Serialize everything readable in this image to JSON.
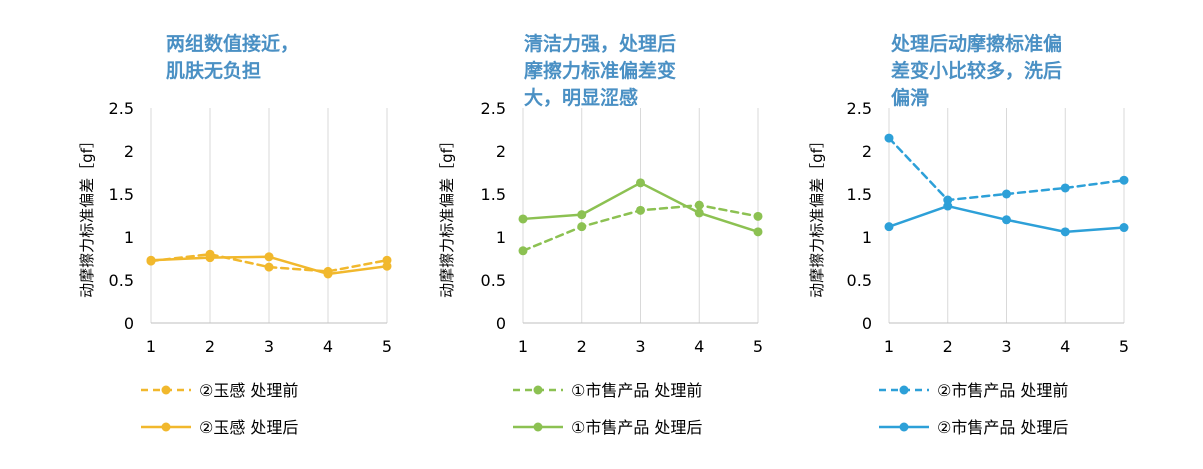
{
  "chart_data": [
    {
      "type": "line",
      "title_lines": [
        "两组数值接近，",
        "肌肤无负担"
      ],
      "ylabel": "动摩擦力标准偏差［gf］",
      "xlabel": "",
      "x": [
        1,
        2,
        3,
        4,
        5
      ],
      "ylim": [
        0,
        2.5
      ],
      "yticks": [
        "0",
        "0.5",
        "1",
        "1.5",
        "2",
        "2.5"
      ],
      "grid": "vertical",
      "legend_position": "bottom",
      "color": "#F1B82D",
      "title_color": "#4A90C4",
      "series": [
        {
          "name": "②玉感 处理前",
          "style": "dashed",
          "values": [
            0.72,
            0.8,
            0.65,
            0.6,
            0.73
          ]
        },
        {
          "name": "②玉感 处理后",
          "style": "solid",
          "values": [
            0.73,
            0.76,
            0.77,
            0.57,
            0.66
          ]
        }
      ]
    },
    {
      "type": "line",
      "title_lines": [
        "清洁力强，处理后",
        "摩擦力标准偏差变",
        "大，明显涩感"
      ],
      "ylabel": "动摩擦力标准偏差［gf］",
      "xlabel": "",
      "x": [
        1,
        2,
        3,
        4,
        5
      ],
      "ylim": [
        0,
        2.5
      ],
      "yticks": [
        "0",
        "0.5",
        "1",
        "1.5",
        "2",
        "2.5"
      ],
      "grid": "vertical",
      "legend_position": "bottom",
      "color": "#8CC152",
      "title_color": "#4A90C4",
      "series": [
        {
          "name": "①市售产品 处理前",
          "style": "dashed",
          "values": [
            0.84,
            1.12,
            1.31,
            1.37,
            1.24
          ]
        },
        {
          "name": "①市售产品 处理后",
          "style": "solid",
          "values": [
            1.21,
            1.26,
            1.63,
            1.28,
            1.06
          ]
        }
      ]
    },
    {
      "type": "line",
      "title_lines": [
        "处理后动摩擦标准偏",
        "差变小比较多，洗后",
        "偏滑"
      ],
      "ylabel": "动摩擦力标准偏差［gf］",
      "xlabel": "",
      "x": [
        1,
        2,
        3,
        4,
        5
      ],
      "ylim": [
        0,
        2.5
      ],
      "yticks": [
        "0",
        "0.5",
        "1",
        "1.5",
        "2",
        "2.5"
      ],
      "grid": "vertical",
      "legend_position": "bottom",
      "color": "#2DA0D8",
      "title_color": "#4A90C4",
      "series": [
        {
          "name": "②市售产品 处理前",
          "style": "dashed",
          "values": [
            2.15,
            1.43,
            1.5,
            1.57,
            1.66
          ]
        },
        {
          "name": "②市售产品 处理后",
          "style": "solid",
          "values": [
            1.12,
            1.36,
            1.2,
            1.06,
            1.11
          ]
        }
      ]
    }
  ]
}
